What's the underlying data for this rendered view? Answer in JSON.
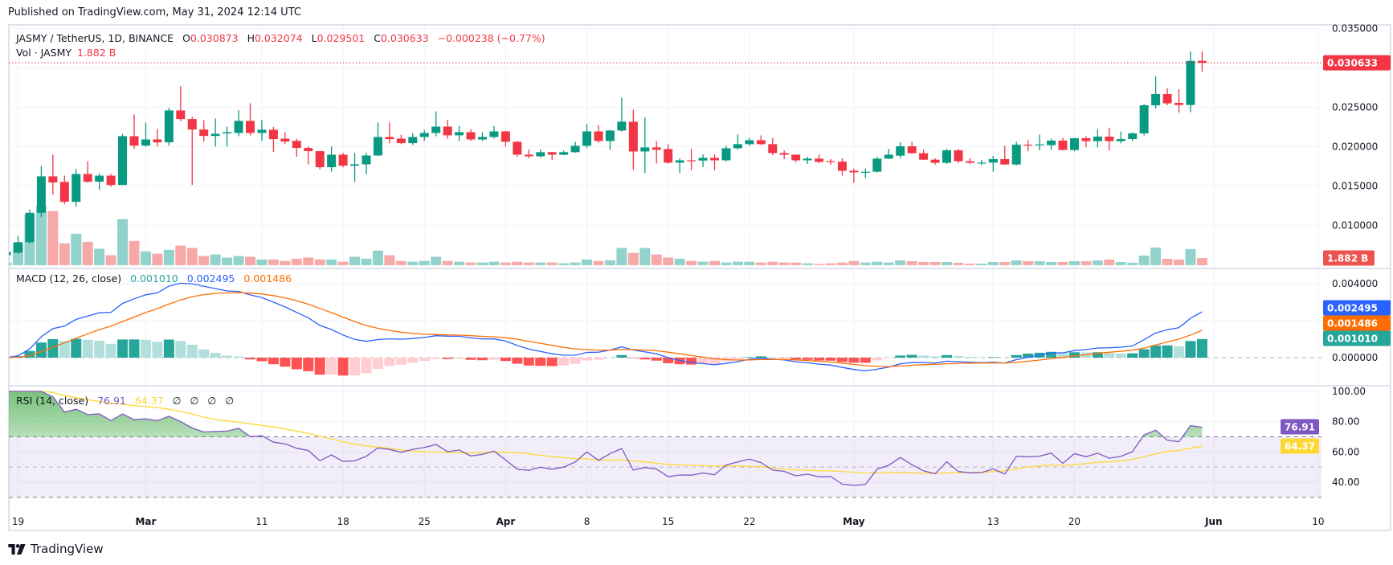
{
  "header": {
    "published": "Published on TradingView.com, May 31, 2024 12:14 UTC"
  },
  "legend": {
    "symbol": "JASMY / TetherUS, 1D, BINANCE",
    "o_label": "O",
    "o": "0.030873",
    "h_label": "H",
    "h": "0.032074",
    "l_label": "L",
    "l": "0.029501",
    "c_label": "C",
    "c": "0.030633",
    "change": "−0.000238 (−0.77%)",
    "vol_label": "Vol · JASMY",
    "vol": "1.882 B"
  },
  "macd_legend": {
    "title": "MACD (12, 26, close)",
    "hist": "0.001010",
    "macd": "0.002495",
    "signal": "0.001486"
  },
  "rsi_legend": {
    "title": "RSI (14, close)",
    "rsi": "76.91",
    "ma": "64.37",
    "extra": [
      "∅",
      "∅",
      "∅",
      "∅"
    ]
  },
  "axes": {
    "price_ticks": [
      {
        "v": 0.035,
        "label": "0.035000"
      },
      {
        "v": 0.025,
        "label": "0.025000"
      },
      {
        "v": 0.02,
        "label": "0.020000"
      },
      {
        "v": 0.015,
        "label": "0.015000"
      },
      {
        "v": 0.01,
        "label": "0.010000"
      }
    ],
    "macd_ticks": [
      {
        "v": 0.004,
        "label": "0.004000"
      },
      {
        "v": 0.0,
        "label": "0.000000"
      }
    ],
    "rsi_ticks": [
      {
        "v": 100,
        "label": "100.00"
      },
      {
        "v": 80,
        "label": "80.00"
      },
      {
        "v": 60,
        "label": "60.00"
      },
      {
        "v": 40,
        "label": "40.00"
      }
    ],
    "time_ticks": [
      {
        "date": "2024-02-19",
        "label": "19",
        "bold": false
      },
      {
        "date": "2024-03-01",
        "label": "Mar",
        "bold": true
      },
      {
        "date": "2024-03-11",
        "label": "11",
        "bold": false
      },
      {
        "date": "2024-03-18",
        "label": "18",
        "bold": false
      },
      {
        "date": "2024-03-25",
        "label": "25",
        "bold": false
      },
      {
        "date": "2024-04-01",
        "label": "Apr",
        "bold": true
      },
      {
        "date": "2024-04-08",
        "label": "8",
        "bold": false
      },
      {
        "date": "2024-04-15",
        "label": "15",
        "bold": false
      },
      {
        "date": "2024-04-22",
        "label": "22",
        "bold": false
      },
      {
        "date": "2024-05-01",
        "label": "May",
        "bold": true
      },
      {
        "date": "2024-05-13",
        "label": "13",
        "bold": false
      },
      {
        "date": "2024-05-20",
        "label": "20",
        "bold": false
      },
      {
        "date": "2024-06-01",
        "label": "Jun",
        "bold": true
      },
      {
        "date": "2024-06-10",
        "label": "10",
        "bold": false
      }
    ]
  },
  "tags": {
    "price": {
      "v": 0.030633,
      "label": "0.030633"
    },
    "volume": {
      "label": "1.882 B"
    },
    "macd": {
      "v": 0.002495,
      "label": "0.002495"
    },
    "signal": {
      "v": 0.001486,
      "label": "0.001486"
    },
    "hist": {
      "v": 0.00101,
      "label": "0.001010"
    },
    "rsi": {
      "v": 76.91,
      "label": "76.91"
    },
    "rsi_ma": {
      "v": 64.37,
      "label": "64.37"
    }
  },
  "footer": {
    "logo_text": "TradingView"
  },
  "colors": {
    "up": "#089981",
    "down": "#f23645",
    "vol_up": "#92d2cc",
    "vol_down": "#f7a9a7",
    "macd": "#2962ff",
    "signal": "#ff6d00",
    "hist_up_strong": "#26a69a",
    "hist_up_weak": "#b2dfdb",
    "hist_down_strong": "#ff5252",
    "hist_down_weak": "#ffcdd2",
    "rsi": "#7e57c2",
    "rsi_ma": "#fdd835",
    "rsi_band": "#7e57c2",
    "grid": "#f0f3fa",
    "text": "#131722"
  },
  "chart_data": {
    "type": "candlestick",
    "interval": "1D",
    "start_date": "2024-02-18",
    "price_range": [
      0.005,
      0.035
    ],
    "ohlc": [
      [
        0.0062,
        0.0067,
        0.006,
        0.0066
      ],
      [
        0.00652,
        0.00866,
        0.0064,
        0.00785
      ],
      [
        0.00785,
        0.012,
        0.0077,
        0.01158
      ],
      [
        0.01158,
        0.01753,
        0.01104,
        0.01621
      ],
      [
        0.01621,
        0.01896,
        0.0139,
        0.01543
      ],
      [
        0.01551,
        0.01631,
        0.01268,
        0.01298
      ],
      [
        0.01298,
        0.01713,
        0.01237,
        0.01651
      ],
      [
        0.01651,
        0.01815,
        0.0154,
        0.01553
      ],
      [
        0.01553,
        0.0166,
        0.01451,
        0.0163
      ],
      [
        0.0163,
        0.0165,
        0.0149,
        0.01512
      ],
      [
        0.01512,
        0.0216,
        0.0151,
        0.02131
      ],
      [
        0.02131,
        0.02407,
        0.01971,
        0.02012
      ],
      [
        0.02012,
        0.02305,
        0.02,
        0.0209
      ],
      [
        0.0209,
        0.02223,
        0.02,
        0.02053
      ],
      [
        0.02053,
        0.02489,
        0.0201,
        0.02458
      ],
      [
        0.02458,
        0.02764,
        0.0232,
        0.02349
      ],
      [
        0.02349,
        0.02376,
        0.01512,
        0.02216
      ],
      [
        0.02216,
        0.02335,
        0.02063,
        0.02134
      ],
      [
        0.02134,
        0.02356,
        0.02,
        0.02162
      ],
      [
        0.02166,
        0.02253,
        0.02,
        0.02182
      ],
      [
        0.02172,
        0.0246,
        0.0213,
        0.02325
      ],
      [
        0.02325,
        0.02549,
        0.0214,
        0.02172
      ],
      [
        0.02172,
        0.02335,
        0.02073,
        0.02213
      ],
      [
        0.02213,
        0.0225,
        0.0193,
        0.02094
      ],
      [
        0.021,
        0.0218,
        0.0203,
        0.02063
      ],
      [
        0.02072,
        0.021,
        0.0187,
        0.01982
      ],
      [
        0.01982,
        0.02,
        0.01773,
        0.01941
      ],
      [
        0.01941,
        0.01945,
        0.0171,
        0.01737
      ],
      [
        0.01737,
        0.02,
        0.0168,
        0.01896
      ],
      [
        0.01896,
        0.0192,
        0.01735,
        0.01757
      ],
      [
        0.01757,
        0.0192,
        0.0155,
        0.01774
      ],
      [
        0.01774,
        0.0192,
        0.0165,
        0.01886
      ],
      [
        0.01886,
        0.02305,
        0.0188,
        0.02121
      ],
      [
        0.02121,
        0.02305,
        0.0204,
        0.02094
      ],
      [
        0.021,
        0.0215,
        0.0203,
        0.02043
      ],
      [
        0.02043,
        0.0217,
        0.0202,
        0.02121
      ],
      [
        0.02121,
        0.0221,
        0.0207,
        0.02172
      ],
      [
        0.02172,
        0.02447,
        0.0213,
        0.02253
      ],
      [
        0.02253,
        0.0234,
        0.021,
        0.02142
      ],
      [
        0.02142,
        0.0226,
        0.0207,
        0.02182
      ],
      [
        0.02182,
        0.0222,
        0.0207,
        0.0209
      ],
      [
        0.0209,
        0.0218,
        0.0207,
        0.02121
      ],
      [
        0.02121,
        0.0226,
        0.021,
        0.02192
      ],
      [
        0.02192,
        0.022,
        0.02,
        0.0206
      ],
      [
        0.0206,
        0.0207,
        0.0187,
        0.01896
      ],
      [
        0.01896,
        0.0196,
        0.0185,
        0.01876
      ],
      [
        0.01876,
        0.0196,
        0.0186,
        0.01928
      ],
      [
        0.01928,
        0.0193,
        0.0183,
        0.01896
      ],
      [
        0.01896,
        0.0195,
        0.0189,
        0.01928
      ],
      [
        0.01928,
        0.0206,
        0.0192,
        0.02009
      ],
      [
        0.02009,
        0.02285,
        0.0198,
        0.02192
      ],
      [
        0.02192,
        0.0227,
        0.0205,
        0.0207
      ],
      [
        0.0207,
        0.0221,
        0.0196,
        0.02203
      ],
      [
        0.02203,
        0.02621,
        0.0219,
        0.02315
      ],
      [
        0.02315,
        0.02468,
        0.01703,
        0.01937
      ],
      [
        0.01937,
        0.02367,
        0.01662,
        0.01989
      ],
      [
        0.01989,
        0.0207,
        0.01785,
        0.01958
      ],
      [
        0.01968,
        0.0203,
        0.0178,
        0.01795
      ],
      [
        0.01795,
        0.0185,
        0.01662,
        0.01825
      ],
      [
        0.01825,
        0.0197,
        0.017,
        0.01822
      ],
      [
        0.01822,
        0.019,
        0.0174,
        0.01856
      ],
      [
        0.01856,
        0.019,
        0.017,
        0.01825
      ],
      [
        0.01825,
        0.0201,
        0.0181,
        0.01978
      ],
      [
        0.01978,
        0.02152,
        0.0196,
        0.0203
      ],
      [
        0.0203,
        0.0211,
        0.0201,
        0.0208
      ],
      [
        0.0208,
        0.0214,
        0.0202,
        0.0203
      ],
      [
        0.0203,
        0.0211,
        0.0189,
        0.01917
      ],
      [
        0.01917,
        0.0195,
        0.0184,
        0.01896
      ],
      [
        0.01896,
        0.019,
        0.018,
        0.01825
      ],
      [
        0.01825,
        0.0187,
        0.0178,
        0.01846
      ],
      [
        0.01846,
        0.019,
        0.0179,
        0.01805
      ],
      [
        0.01815,
        0.0184,
        0.0177,
        0.01808
      ],
      [
        0.01808,
        0.0185,
        0.01631,
        0.01692
      ],
      [
        0.01692,
        0.0172,
        0.01539,
        0.01672
      ],
      [
        0.01672,
        0.0172,
        0.016,
        0.0168
      ],
      [
        0.0168,
        0.01866,
        0.0167,
        0.01846
      ],
      [
        0.01846,
        0.0197,
        0.0184,
        0.01896
      ],
      [
        0.01884,
        0.02054,
        0.01853,
        0.02003
      ],
      [
        0.02003,
        0.02064,
        0.0191,
        0.01915
      ],
      [
        0.01915,
        0.0196,
        0.0183,
        0.01833
      ],
      [
        0.01833,
        0.0185,
        0.0177,
        0.01793
      ],
      [
        0.01793,
        0.0197,
        0.0178,
        0.01952
      ],
      [
        0.01952,
        0.0197,
        0.0179,
        0.01813
      ],
      [
        0.01813,
        0.0185,
        0.0178,
        0.01793
      ],
      [
        0.01793,
        0.0183,
        0.0176,
        0.01796
      ],
      [
        0.01796,
        0.0188,
        0.0168,
        0.0184
      ],
      [
        0.0184,
        0.0201,
        0.0177,
        0.01772
      ],
      [
        0.01772,
        0.0206,
        0.0176,
        0.02024
      ],
      [
        0.02024,
        0.0208,
        0.0194,
        0.02017
      ],
      [
        0.02017,
        0.0215,
        0.0195,
        0.02027
      ],
      [
        0.02017,
        0.021,
        0.0196,
        0.02075
      ],
      [
        0.02075,
        0.0211,
        0.0195,
        0.01956
      ],
      [
        0.01956,
        0.0211,
        0.0194,
        0.02105
      ],
      [
        0.02105,
        0.0213,
        0.0199,
        0.02068
      ],
      [
        0.02068,
        0.0222,
        0.0199,
        0.02126
      ],
      [
        0.02126,
        0.0224,
        0.0195,
        0.02068
      ],
      [
        0.02068,
        0.0219,
        0.0204,
        0.02095
      ],
      [
        0.02095,
        0.0218,
        0.0207,
        0.02167
      ],
      [
        0.02167,
        0.0254,
        0.0214,
        0.02524
      ],
      [
        0.02524,
        0.02891,
        0.02483,
        0.02667
      ],
      [
        0.02667,
        0.02738,
        0.02524,
        0.02548
      ],
      [
        0.02554,
        0.02728,
        0.02431,
        0.02527
      ],
      [
        0.02527,
        0.03207,
        0.02435,
        0.030871
      ],
      [
        0.030873,
        0.032074,
        0.029501,
        0.030633
      ]
    ],
    "volume_billions": [
      0.7,
      5.7,
      13.2,
      15.5,
      14.1,
      5.7,
      8.2,
      6.1,
      4.3,
      2.6,
      12.0,
      6.3,
      3.6,
      3.0,
      4.0,
      5.1,
      4.5,
      2.4,
      2.8,
      2.0,
      2.4,
      2.2,
      1.5,
      1.5,
      1.1,
      1.7,
      2.0,
      1.5,
      1.5,
      0.9,
      2.2,
      1.7,
      3.8,
      2.6,
      1.1,
      0.9,
      1.1,
      2.2,
      1.1,
      0.9,
      0.7,
      0.7,
      0.9,
      0.7,
      0.9,
      0.7,
      0.7,
      0.7,
      0.5,
      0.7,
      1.5,
      1.1,
      1.3,
      4.5,
      3.2,
      4.5,
      2.8,
      2.0,
      1.7,
      1.1,
      0.9,
      1.1,
      0.7,
      0.9,
      0.9,
      0.7,
      0.9,
      0.7,
      0.7,
      0.5,
      0.3,
      0.5,
      0.7,
      1.1,
      0.7,
      0.9,
      0.7,
      1.25,
      1.05,
      0.84,
      0.84,
      0.84,
      0.63,
      0.42,
      0.42,
      0.84,
      0.84,
      1.25,
      1.05,
      1.05,
      0.84,
      0.84,
      1.05,
      1.05,
      1.25,
      1.46,
      0.84,
      0.63,
      2.5,
      4.6,
      1.67,
      1.46,
      4.2,
      1.882
    ],
    "indicators": {
      "macd": {
        "fast": 12,
        "slow": 26,
        "signal": 9,
        "source": "close",
        "range": [
          -0.0014,
          0.0045
        ]
      },
      "rsi": {
        "length": 14,
        "ma_length": 14,
        "source": "close",
        "bands": [
          70,
          50,
          30
        ],
        "range": [
          25,
          100
        ]
      }
    }
  }
}
